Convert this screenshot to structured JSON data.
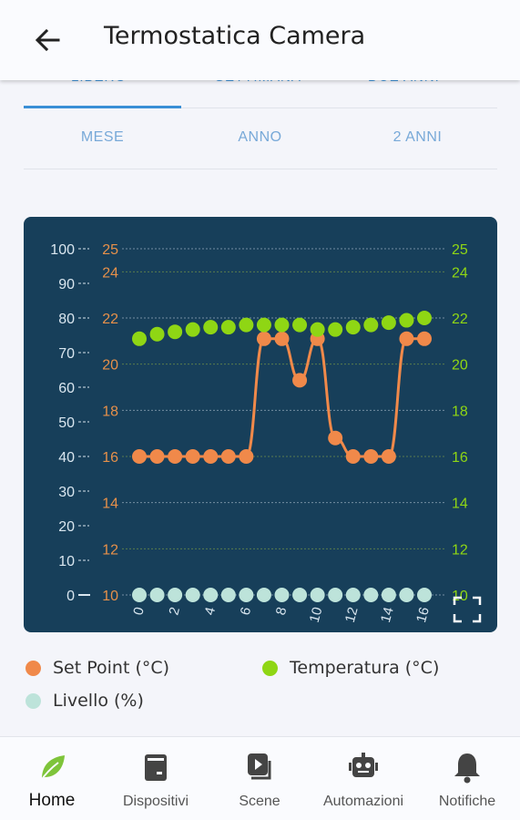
{
  "header": {
    "title": "Termostatica Camera"
  },
  "top_tabs": [
    {
      "label": "LIBERO",
      "active": true
    },
    {
      "label": "SETTIMANA",
      "active": false
    },
    {
      "label": "DUE ANNI",
      "active": false
    }
  ],
  "range_tabs": [
    {
      "label": "MESE"
    },
    {
      "label": "ANNO"
    },
    {
      "label": "2 ANNI"
    }
  ],
  "chart_data": {
    "type": "line",
    "x": [
      0,
      1,
      2,
      3,
      4,
      5,
      6,
      7,
      8,
      9,
      10,
      11,
      12,
      13,
      14,
      15,
      16
    ],
    "x_ticks": [
      "0",
      "2",
      "4",
      "6",
      "8",
      "10",
      "12",
      "14",
      "16"
    ],
    "xlim": [
      0,
      16
    ],
    "axes": {
      "left": {
        "range": [
          0,
          100
        ],
        "ticks": [
          "0",
          "10",
          "20",
          "30",
          "40",
          "50",
          "60",
          "70",
          "80",
          "90",
          "100"
        ]
      },
      "left_inner": {
        "range": [
          10,
          25
        ],
        "ticks": [
          "10",
          "12",
          "14",
          "16",
          "18",
          "20",
          "22",
          "24",
          "25"
        ]
      },
      "right": {
        "range": [
          10,
          25
        ],
        "ticks": [
          "10",
          "12",
          "14",
          "16",
          "18",
          "20",
          "22",
          "24",
          "25"
        ]
      }
    },
    "series": [
      {
        "name": "Set Point (°C)",
        "color": "#f0894a",
        "axis": "left_inner",
        "values": [
          16,
          16,
          16,
          16,
          16,
          16,
          16,
          21.1,
          21.1,
          19.3,
          21.1,
          16.8,
          16,
          16,
          16,
          21.1,
          21.1
        ]
      },
      {
        "name": "Temperatura (°C)",
        "color": "#8fd614",
        "axis": "right",
        "values": [
          21.1,
          21.3,
          21.4,
          21.5,
          21.6,
          21.6,
          21.7,
          21.7,
          21.7,
          21.7,
          21.5,
          21.5,
          21.6,
          21.7,
          21.8,
          21.9,
          22
        ]
      },
      {
        "name": "Livello (%)",
        "color": "#bde3da",
        "axis": "left",
        "values": [
          0,
          0,
          0,
          0,
          0,
          0,
          0,
          0,
          0,
          0,
          0,
          0,
          0,
          0,
          0,
          0,
          0
        ]
      }
    ],
    "colors": {
      "background": "#173f5a",
      "left_axis_text": "#d9e6ef",
      "inner_axis_text": "#e6904a",
      "right_axis_text": "#8fd614"
    }
  },
  "legend": [
    {
      "label": "Set Point (°C)",
      "color": "#f0894a"
    },
    {
      "label": "Temperatura (°C)",
      "color": "#8fd614"
    },
    {
      "label": "Livello (%)",
      "color": "#bde3da"
    }
  ],
  "bottom_nav": [
    {
      "label": "Home",
      "icon": "leaf-icon",
      "active": true
    },
    {
      "label": "Dispositivi",
      "icon": "device-icon",
      "active": false
    },
    {
      "label": "Scene",
      "icon": "scene-play-icon",
      "active": false
    },
    {
      "label": "Automazioni",
      "icon": "robot-icon",
      "active": false
    },
    {
      "label": "Notifiche",
      "icon": "bell-icon",
      "active": false
    }
  ]
}
